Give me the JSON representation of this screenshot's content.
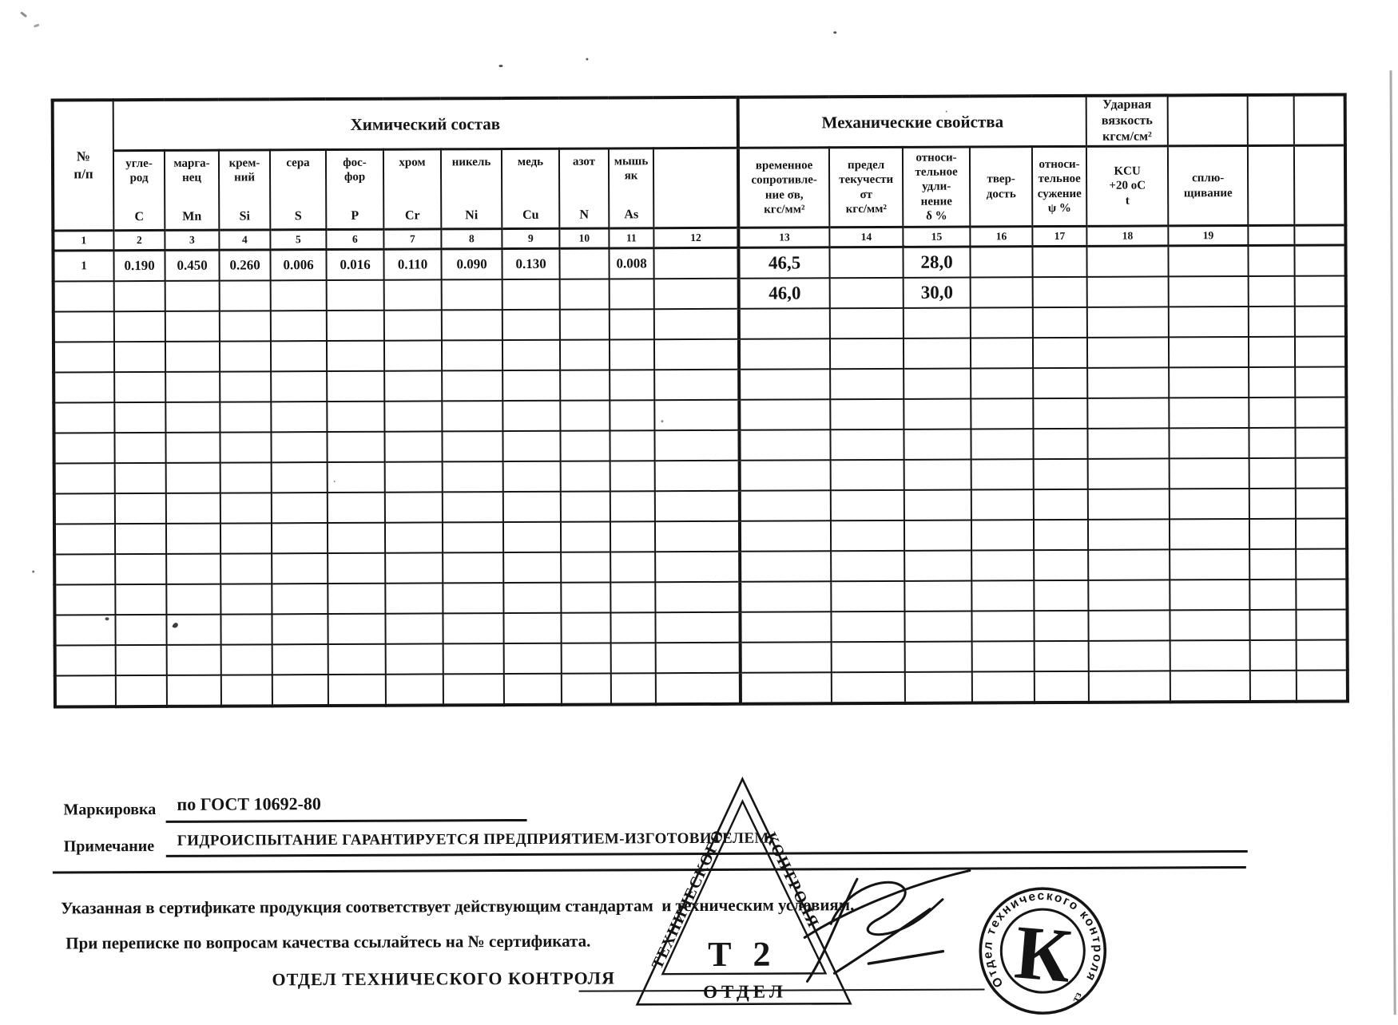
{
  "table": {
    "corner": "№\nп/п",
    "chemical": "Химический состав",
    "mechanical": "Механические свойства",
    "impact": "Ударная\nвязкость\nкгсм/см²",
    "chem_columns": [
      {
        "name": "угле-\nрод",
        "symbol": "C"
      },
      {
        "name": "марга-\nнец",
        "symbol": "Mn"
      },
      {
        "name": "крем-\nний",
        "symbol": "Si"
      },
      {
        "name": "сера",
        "symbol": "S"
      },
      {
        "name": "фос-\nфор",
        "symbol": "P"
      },
      {
        "name": "хром",
        "symbol": "Cr"
      },
      {
        "name": "никель",
        "symbol": "Ni"
      },
      {
        "name": "медь",
        "symbol": "Cu"
      },
      {
        "name": "азот",
        "symbol": "N"
      },
      {
        "name": "мышь\nяк",
        "symbol": "As"
      }
    ],
    "mech_columns": [
      "временное\nсопротивле-\nние σв,\nкгс/мм²",
      "предел\nтекучести\nσт\nкгс/мм²",
      "относи-\nтельное\nудли-\nнение\nδ %",
      "твер-\nдость",
      "относи-\nтельное\nсужение\nψ %"
    ],
    "kcu": "KCU\n+20 оС\nt",
    "flattening": "сплю-\nщивание",
    "col_numbers": [
      "1",
      "2",
      "3",
      "4",
      "5",
      "6",
      "7",
      "8",
      "9",
      "10",
      "11",
      "12",
      "13",
      "14",
      "15",
      "16",
      "17",
      "18",
      "19",
      "",
      ""
    ],
    "rows": [
      [
        "1",
        "0.190",
        "0.450",
        "0.260",
        "0.006",
        "0.016",
        "0.110",
        "0.090",
        "0.130",
        "",
        "0.008",
        "",
        "46,5",
        "",
        "28,0",
        "",
        "",
        "",
        "",
        "",
        ""
      ],
      [
        "",
        "",
        "",
        "",
        "",
        "",
        "",
        "",
        "",
        "",
        "",
        "",
        "46,0",
        "",
        "30,0",
        "",
        "",
        "",
        "",
        "",
        ""
      ],
      [
        "",
        "",
        "",
        "",
        "",
        "",
        "",
        "",
        "",
        "",
        "",
        "",
        "",
        "",
        "",
        "",
        "",
        "",
        "",
        "",
        ""
      ],
      [
        "",
        "",
        "",
        "",
        "",
        "",
        "",
        "",
        "",
        "",
        "",
        "",
        "",
        "",
        "",
        "",
        "",
        "",
        "",
        "",
        ""
      ],
      [
        "",
        "",
        "",
        "",
        "",
        "",
        "",
        "",
        "",
        "",
        "",
        "",
        "",
        "",
        "",
        "",
        "",
        "",
        "",
        "",
        ""
      ],
      [
        "",
        "",
        "",
        "",
        "",
        "",
        "",
        "",
        "",
        "",
        "",
        "",
        "",
        "",
        "",
        "",
        "",
        "",
        "",
        "",
        ""
      ],
      [
        "",
        "",
        "",
        "",
        "",
        "",
        "",
        "",
        "",
        "",
        "",
        "",
        "",
        "",
        "",
        "",
        "",
        "",
        "",
        "",
        ""
      ],
      [
        "",
        "",
        "",
        "",
        "",
        "",
        "",
        "",
        "",
        "",
        "",
        "",
        "",
        "",
        "",
        "",
        "",
        "",
        "",
        "",
        ""
      ],
      [
        "",
        "",
        "",
        "",
        "",
        "",
        "",
        "",
        "",
        "",
        "",
        "",
        "",
        "",
        "",
        "",
        "",
        "",
        "",
        "",
        ""
      ],
      [
        "",
        "",
        "",
        "",
        "",
        "",
        "",
        "",
        "",
        "",
        "",
        "",
        "",
        "",
        "",
        "",
        "",
        "",
        "",
        "",
        ""
      ],
      [
        "",
        "",
        "",
        "",
        "",
        "",
        "",
        "",
        "",
        "",
        "",
        "",
        "",
        "",
        "",
        "",
        "",
        "",
        "",
        "",
        ""
      ],
      [
        "",
        "",
        "",
        "",
        "",
        "",
        "",
        "",
        "",
        "",
        "",
        "",
        "",
        "",
        "",
        "",
        "",
        "",
        "",
        "",
        ""
      ],
      [
        "",
        "",
        "",
        "",
        "",
        "",
        "",
        "",
        "",
        "",
        "",
        "",
        "",
        "",
        "",
        "",
        "",
        "",
        "",
        "",
        ""
      ],
      [
        "",
        "",
        "",
        "",
        "",
        "",
        "",
        "",
        "",
        "",
        "",
        "",
        "",
        "",
        "",
        "",
        "",
        "",
        "",
        "",
        ""
      ],
      [
        "",
        "",
        "",
        "",
        "",
        "",
        "",
        "",
        "",
        "",
        "",
        "",
        "",
        "",
        "",
        "",
        "",
        "",
        "",
        "",
        ""
      ]
    ]
  },
  "footer": {
    "marking_label": "Маркировка",
    "marking_value": "по  ГОСТ 10692-80",
    "note_label": "Примечание",
    "note_value": "ГИДРОИСПЫТАНИЕ  ГАРАНТИРУЕТСЯ ПРЕДПРИЯТИЕМ-ИЗГОТОВИТЕЛЕМ.",
    "statement1": "Указанная в сертификате продукция соответствует действующим стандартам  и техническим условиям.",
    "statement2": "При переписке по вопросам качества ссылайтесь на № сертификата.",
    "dept": "ОТДЕЛ ТЕХНИЧЕСКОГО КОНТРОЛЯ"
  },
  "stamps": {
    "triangle": {
      "left_side": "ТЕХНИЧЕСКОГО",
      "right_side": "КОНТРОЛЯ",
      "bottom": "ОТДЕЛ",
      "center": "Т 2"
    },
    "round": {
      "ring": "Отдел технического контроля",
      "center": "К",
      "bottom_mark": "тз"
    }
  }
}
